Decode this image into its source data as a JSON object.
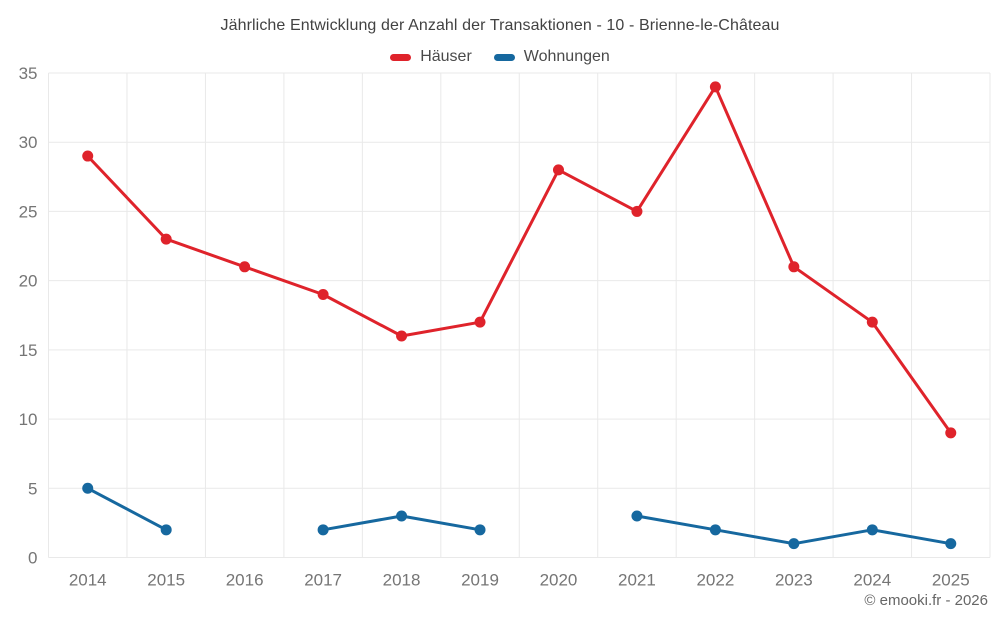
{
  "title": "Jährliche Entwicklung der Anzahl der Transaktionen - 10 - Brienne-le-Château",
  "footer": "© emooki.fr - 2026",
  "chart_data": {
    "type": "line",
    "title": "Jährliche Entwicklung der Anzahl der Transaktionen - 10 - Brienne-le-Château",
    "categories": [
      "2014",
      "2015",
      "2016",
      "2017",
      "2018",
      "2019",
      "2020",
      "2021",
      "2022",
      "2023",
      "2024",
      "2025"
    ],
    "series": [
      {
        "name": "Häuser",
        "color": "#df232b",
        "values": [
          29,
          23,
          21,
          19,
          16,
          17,
          28,
          25,
          34,
          21,
          17,
          9
        ]
      },
      {
        "name": "Wohnungen",
        "color": "#16689f",
        "values": [
          5,
          2,
          null,
          2,
          3,
          2,
          null,
          3,
          2,
          1,
          2,
          1
        ]
      }
    ],
    "xlabel": "",
    "ylabel": "",
    "ylim": [
      0,
      35
    ],
    "yticks": [
      0,
      5,
      10,
      15,
      20,
      25,
      30,
      35
    ],
    "grid": true,
    "grid_color": "#e9e9e9",
    "tick_color": "#757575",
    "legend_position": "top",
    "annotations": []
  }
}
